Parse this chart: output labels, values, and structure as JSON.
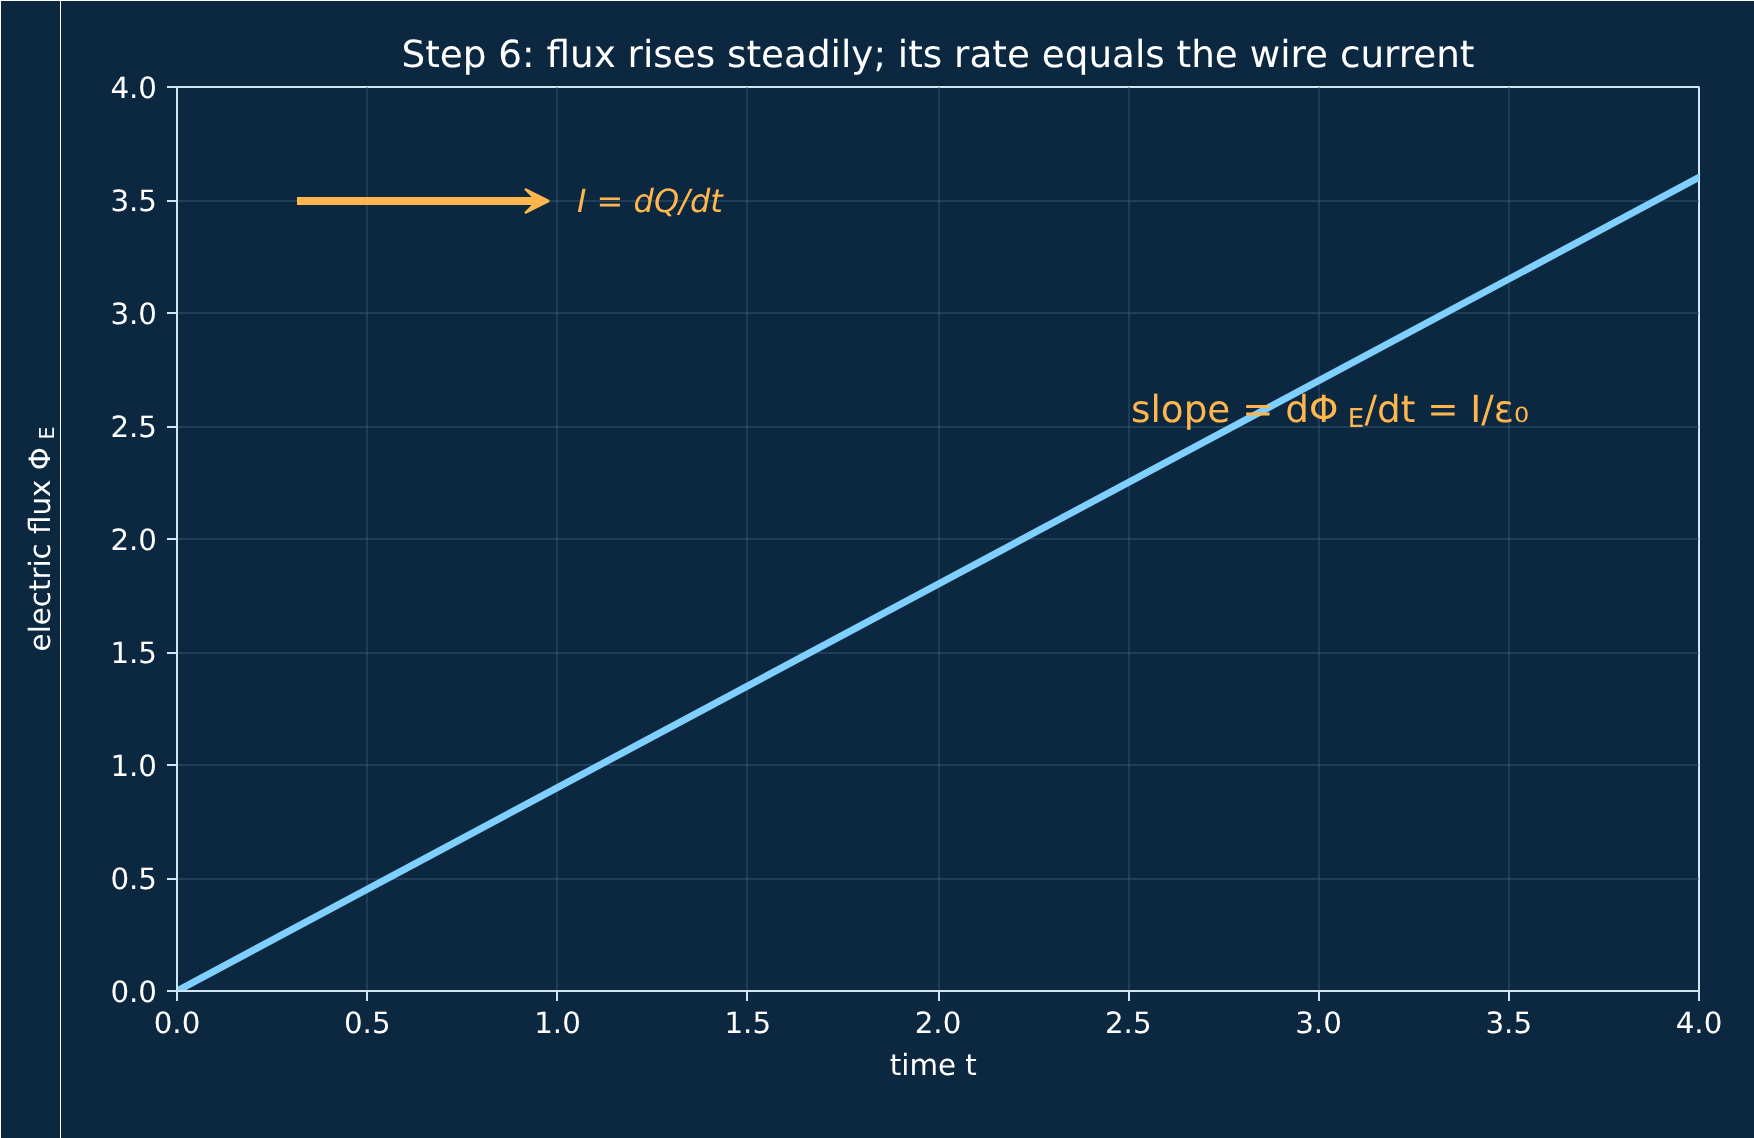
{
  "chart_data": {
    "type": "line",
    "title": "Step 6: flux rises steadily; its rate equals the wire current",
    "xlabel": "time  t",
    "ylabel": "electric flux  Φ$_{E}$",
    "x": [
      0,
      4
    ],
    "series": [
      {
        "color": "#7fd0ff",
        "values": [
          0,
          3.6
        ]
      }
    ],
    "xlim": [
      0,
      4
    ],
    "ylim": [
      0,
      4
    ],
    "xticks": [
      {
        "value": 0,
        "label": "0.0"
      },
      0.5,
      {
        "value": 1,
        "label": "1.0"
      },
      1.5,
      {
        "value": 2,
        "label": "2.0"
      },
      2.5,
      {
        "value": 3,
        "label": "3.0"
      },
      3.5,
      {
        "value": 4,
        "label": "4.0"
      }
    ],
    "yticks": [
      {
        "value": 0,
        "label": "0.0"
      },
      0.5,
      {
        "value": 1,
        "label": "1.0"
      },
      1.5,
      {
        "value": 2,
        "label": "2.0"
      },
      2.5,
      {
        "value": 3,
        "label": "3.0"
      },
      3.5,
      {
        "value": 4,
        "label": "4.0"
      }
    ],
    "annotations": [
      "I = dQ/dt",
      "slope  = dΦ$_{E}$/dt = I/ε₀"
    ],
    "grid": true,
    "line_style": "solid",
    "marker": "none"
  }
}
